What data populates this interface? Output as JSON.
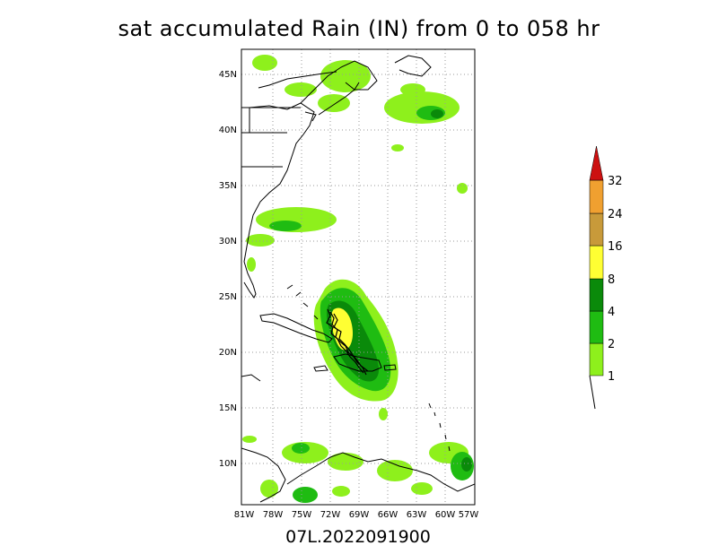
{
  "title": "sat accumulated Rain (IN) from 0 to 058 hr",
  "subtitle": "07L.2022091900",
  "map": {
    "lat_ticks": [
      "45N",
      "40N",
      "35N",
      "30N",
      "25N",
      "20N",
      "15N",
      "10N"
    ],
    "lon_ticks": [
      "81W",
      "78W",
      "75W",
      "72W",
      "69W",
      "66W",
      "63W",
      "60W",
      "57W"
    ],
    "lat_range": [
      6.5,
      47.5
    ],
    "lon_range": [
      -81.3,
      -56.5
    ]
  },
  "colorbar": {
    "levels": [
      "1",
      "2",
      "4",
      "8",
      "16",
      "24",
      "32"
    ],
    "colors": [
      "#8ef01c",
      "#1fbc12",
      "#0a8a0a",
      "#ffff33",
      "#c89a3a",
      "#f0a030",
      "#cc1010"
    ]
  }
}
